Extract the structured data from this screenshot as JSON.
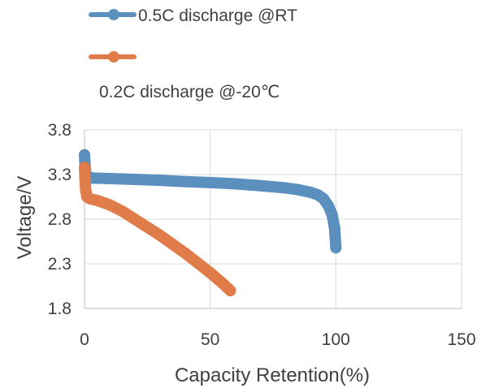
{
  "chart_data": {
    "type": "line",
    "xlabel": "Capacity Retention(%)",
    "ylabel": "Voltage/V",
    "xlim": [
      0,
      150
    ],
    "ylim": [
      1.8,
      3.8
    ],
    "x_ticks": [
      "0",
      "50",
      "100",
      "150"
    ],
    "y_ticks": [
      "1.8",
      "2.3",
      "2.8",
      "3.3",
      "3.8"
    ],
    "grid": true,
    "legend_position": "top-left",
    "series": [
      {
        "name": "0.5C discharge @RT",
        "color": "#5b8fbe",
        "points": [
          [
            0,
            3.52
          ],
          [
            0.2,
            3.4
          ],
          [
            0.5,
            3.32
          ],
          [
            1,
            3.28
          ],
          [
            3,
            3.26
          ],
          [
            10,
            3.255
          ],
          [
            20,
            3.245
          ],
          [
            30,
            3.235
          ],
          [
            40,
            3.22
          ],
          [
            50,
            3.21
          ],
          [
            60,
            3.195
          ],
          [
            70,
            3.175
          ],
          [
            80,
            3.15
          ],
          [
            85,
            3.13
          ],
          [
            90,
            3.1
          ],
          [
            93,
            3.07
          ],
          [
            95,
            3.03
          ],
          [
            97,
            2.95
          ],
          [
            98.5,
            2.85
          ],
          [
            99.5,
            2.7
          ],
          [
            100,
            2.48
          ]
        ]
      },
      {
        "name": "0.2C discharge @-20℃",
        "color": "#e07b4a",
        "points": [
          [
            0,
            3.38
          ],
          [
            0.2,
            3.25
          ],
          [
            0.5,
            3.12
          ],
          [
            1,
            3.05
          ],
          [
            2,
            3.03
          ],
          [
            5,
            3.01
          ],
          [
            10,
            2.96
          ],
          [
            15,
            2.89
          ],
          [
            20,
            2.8
          ],
          [
            25,
            2.71
          ],
          [
            30,
            2.62
          ],
          [
            35,
            2.52
          ],
          [
            40,
            2.42
          ],
          [
            45,
            2.31
          ],
          [
            50,
            2.2
          ],
          [
            55,
            2.08
          ],
          [
            58,
            2.0
          ]
        ]
      }
    ]
  }
}
